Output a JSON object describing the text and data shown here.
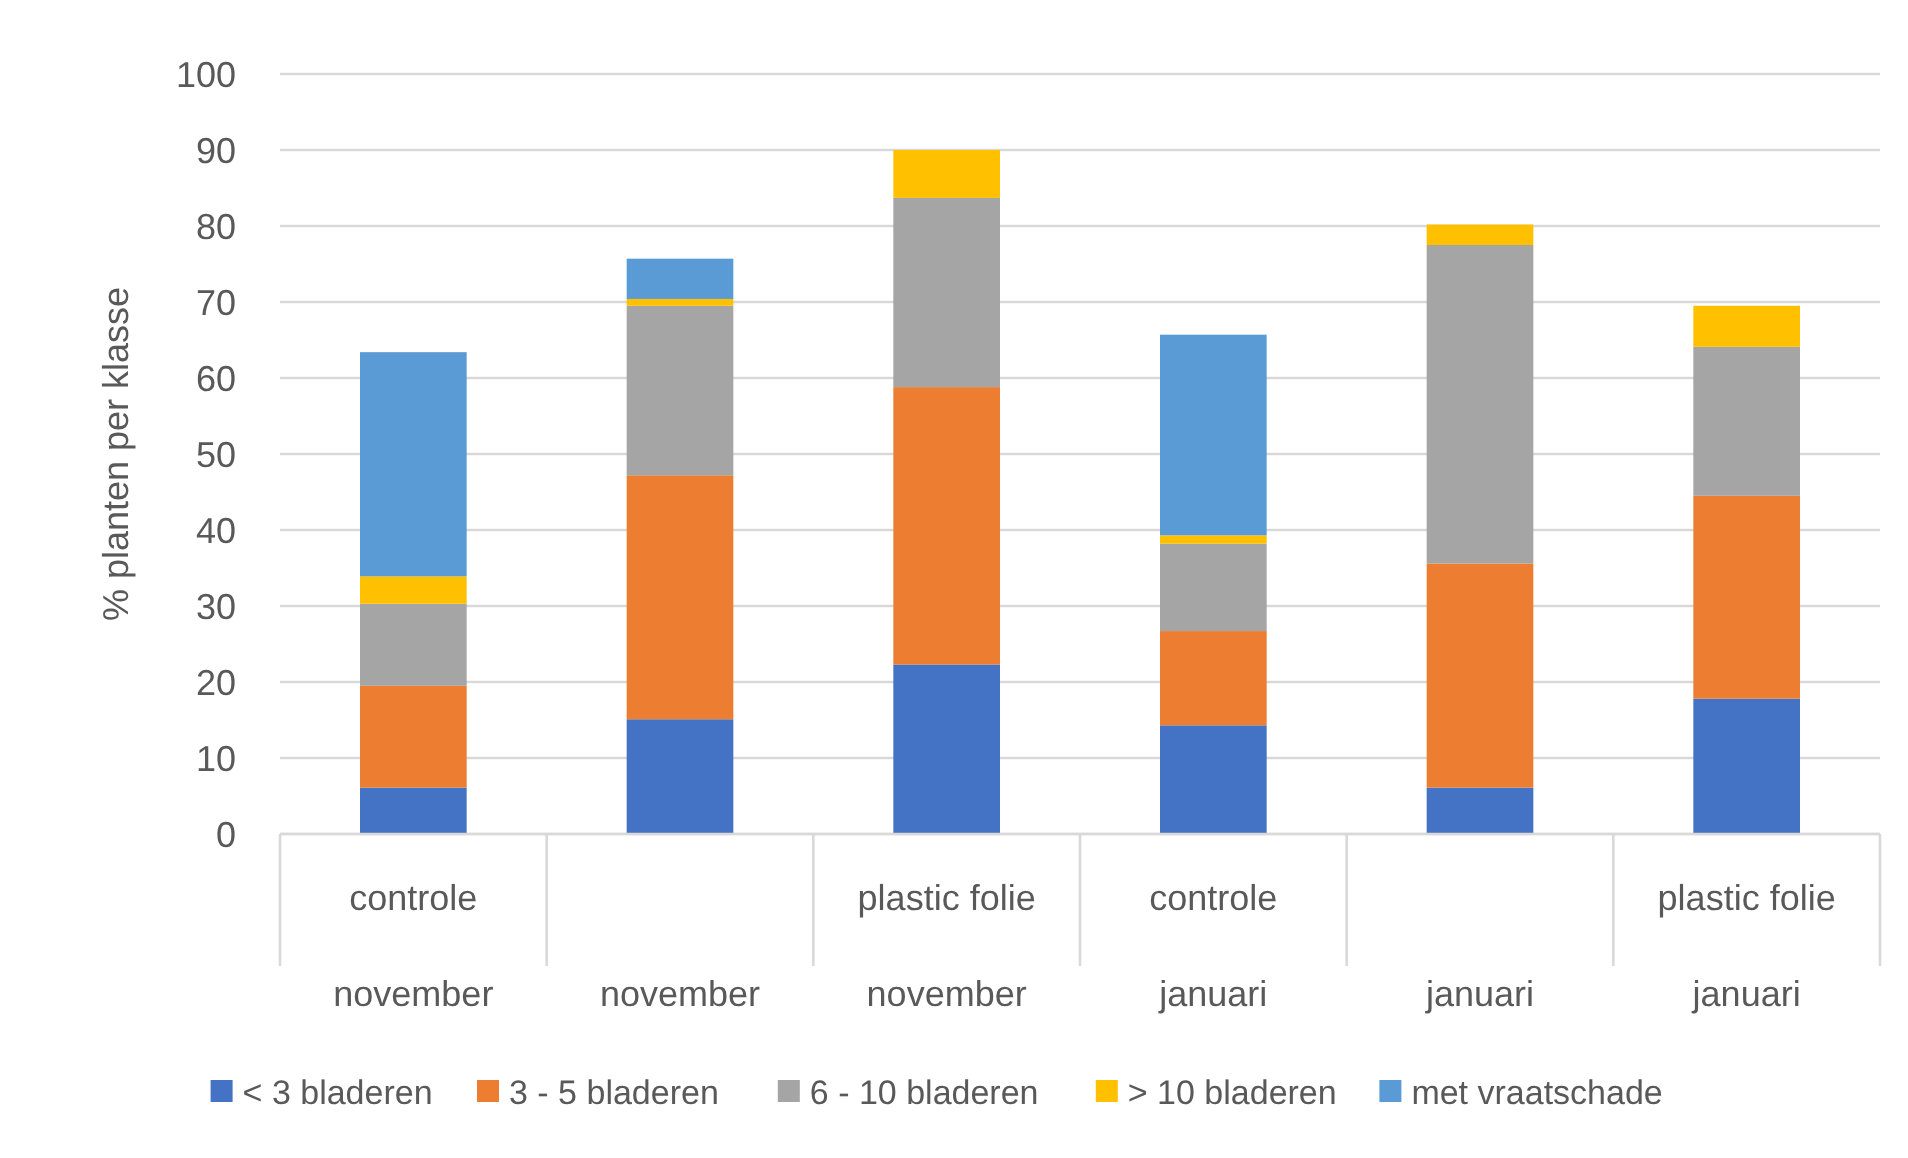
{
  "chart_data": {
    "type": "bar",
    "stacked": true,
    "ylabel": "% planten per klasse",
    "categories": [
      "controle\nnovember",
      "november",
      "plastic folie\nnovember",
      "controle\njanuari",
      "januari",
      "plastic folie\njanuari"
    ],
    "series": [
      {
        "name": "< 3 bladeren",
        "color": "#4472c4",
        "values": [
          6.1,
          15.1,
          22.3,
          14.3,
          6.1,
          17.8
        ]
      },
      {
        "name": "3 - 5 bladeren",
        "color": "#ed7d31",
        "values": [
          13.4,
          32.1,
          36.5,
          12.4,
          29.5,
          26.7
        ]
      },
      {
        "name": "6 - 10 bladeren",
        "color": "#a5a5a5",
        "values": [
          10.8,
          22.3,
          24.9,
          11.5,
          41.9,
          19.6
        ]
      },
      {
        "name": "> 10 bladeren",
        "color": "#ffc000",
        "values": [
          3.6,
          0.9,
          6.3,
          1.1,
          2.7,
          5.4
        ]
      },
      {
        "name": "met vraatschade",
        "color": "#5b9bd5",
        "values": [
          29.5,
          5.3,
          null,
          26.4,
          null,
          null
        ]
      }
    ],
    "ylim": [
      0,
      100
    ],
    "yticks": [
      0,
      10,
      20,
      30,
      40,
      50,
      60,
      70,
      80,
      90,
      100
    ],
    "grid": "y",
    "legend": "bottom"
  }
}
